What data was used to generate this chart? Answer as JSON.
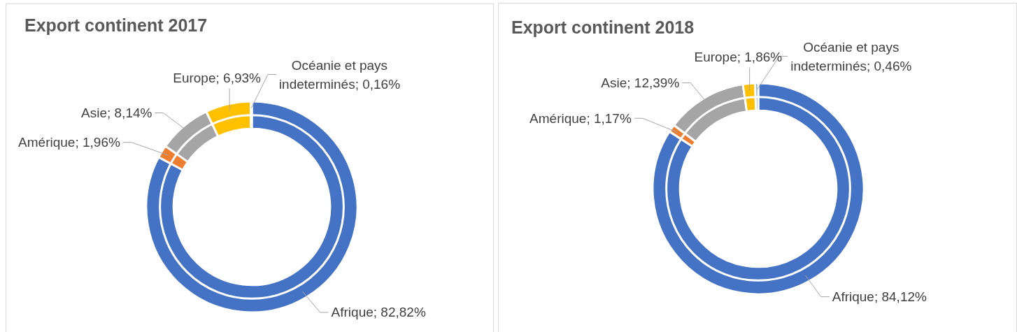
{
  "chart_data": [
    {
      "type": "donut",
      "title": "Export continent 2017",
      "categories": [
        "Afrique",
        "Amérique",
        "Asie",
        "Europe",
        "Océanie et pays indeterminés"
      ],
      "colors": [
        "#4472c4",
        "#ed7d31",
        "#a5a5a5",
        "#ffc000",
        "#5b9bd5"
      ],
      "values": [
        82.82,
        1.96,
        8.14,
        6.93,
        0.16
      ],
      "value_labels": [
        "82,82%",
        "1,96%",
        "8,14%",
        "6,93%",
        "0,16%"
      ]
    },
    {
      "type": "donut",
      "title": "Export continent 2018",
      "categories": [
        "Afrique",
        "Amérique",
        "Asie",
        "Europe",
        "Océanie et pays indeterminés"
      ],
      "colors": [
        "#4472c4",
        "#ed7d31",
        "#a5a5a5",
        "#ffc000",
        "#5b9bd5"
      ],
      "values": [
        84.12,
        1.17,
        12.39,
        1.86,
        0.46
      ],
      "value_labels": [
        "84,12%",
        "1,17%",
        "12,39%",
        "1,86%",
        "0,46%"
      ]
    }
  ]
}
